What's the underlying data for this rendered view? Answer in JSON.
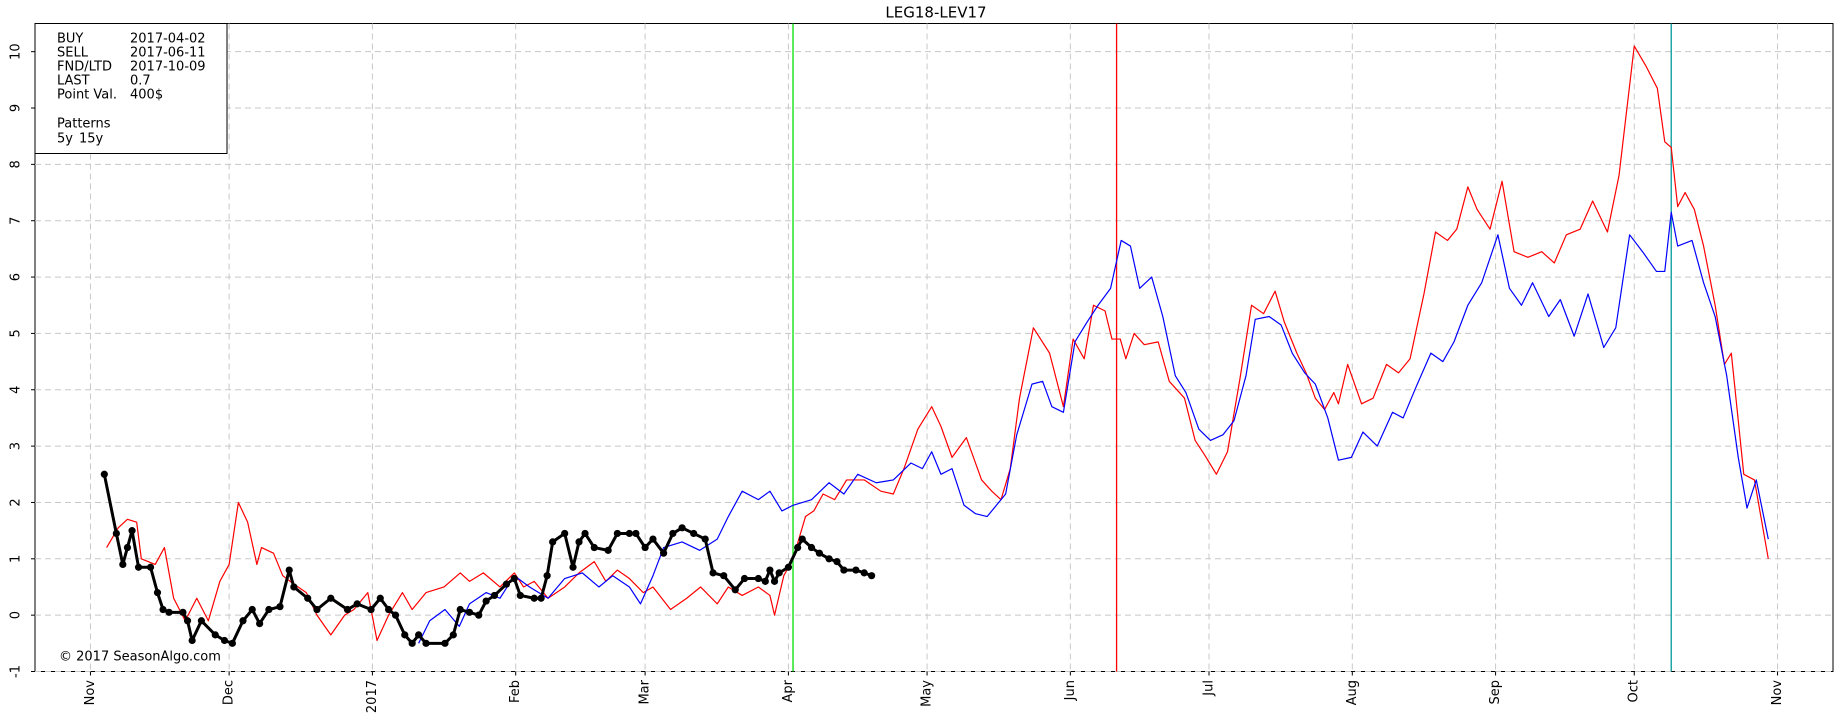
{
  "chart_data": {
    "type": "line",
    "title": "LEG18-LEV17",
    "xlim": [
      -12,
      377
    ],
    "ylim": [
      -1,
      10.5
    ],
    "grid": true,
    "xticks": [
      {
        "value": 0,
        "label": "Nov"
      },
      {
        "value": 30,
        "label": "Dec"
      },
      {
        "value": 61,
        "label": "2017"
      },
      {
        "value": 92,
        "label": "Feb"
      },
      {
        "value": 120,
        "label": "Mar"
      },
      {
        "value": 151,
        "label": "Apr"
      },
      {
        "value": 181,
        "label": "May"
      },
      {
        "value": 212,
        "label": "Jun"
      },
      {
        "value": 242,
        "label": "Jul"
      },
      {
        "value": 273,
        "label": "Aug"
      },
      {
        "value": 304,
        "label": "Sep"
      },
      {
        "value": 334,
        "label": "Oct"
      },
      {
        "value": 365,
        "label": "Nov"
      }
    ],
    "yticks": [
      -1,
      0,
      1,
      2,
      3,
      4,
      5,
      6,
      7,
      8,
      9,
      10
    ],
    "info": [
      {
        "label": "BUY",
        "value": "2017-04-02",
        "color": "#00e000",
        "x": 152
      },
      {
        "label": "SELL",
        "value": "2017-06-11",
        "color": "#ff0000",
        "x": 222
      },
      {
        "label": "FND/LTD",
        "value": "2017-10-09",
        "color": "#009999",
        "x": 342
      },
      {
        "label": "LAST",
        "value": "0.7",
        "color": "#000000"
      },
      {
        "label": "Point Val.",
        "value": "400$",
        "color": "#000000"
      }
    ],
    "legend_title": "Patterns",
    "footer": "© 2017 SeasonAlgo.com",
    "series": [
      {
        "name": "5y",
        "color": "#ff0000",
        "markers": false,
        "x": [
          3.5,
          6,
          8,
          10,
          11,
          14,
          16,
          18,
          20.5,
          23,
          25.5,
          28,
          30,
          32,
          34,
          36,
          37,
          39.6,
          41.6,
          44,
          46.7,
          49,
          52,
          55,
          57,
          60,
          62,
          64.5,
          67.5,
          69.6,
          72.6,
          76.5,
          80,
          82,
          85,
          88.6,
          91.7,
          93.7,
          96,
          99,
          102.6,
          105.7,
          109,
          111.5,
          114,
          116.6,
          119.6,
          121.7,
          125.5,
          129,
          132,
          135.6,
          138,
          141,
          144.5,
          147,
          148,
          150,
          152,
          154.7,
          156.5,
          158.5,
          161,
          163.6,
          167.4,
          171,
          173.7,
          176,
          179,
          182,
          184,
          186.4,
          189.5,
          192.8,
          195,
          197,
          199,
          201,
          204,
          207.5,
          210.5,
          212.6,
          215,
          217,
          219.5,
          221,
          222.8,
          224,
          225.8,
          228,
          231,
          233.4,
          236.7,
          239,
          241,
          243.6,
          246,
          248.7,
          251.2,
          253.8,
          256.3,
          258.3,
          261,
          263,
          265,
          267,
          269,
          270,
          272,
          275,
          277.5,
          280.4,
          283,
          285.5,
          288.5,
          291,
          293.6,
          295.6,
          298,
          300,
          302.8,
          305.4,
          308,
          311,
          314,
          316.7,
          319.3,
          322.3,
          325,
          328.2,
          330.7,
          334,
          336.5,
          339,
          340.6,
          342,
          343.4,
          345,
          347,
          349,
          351.5,
          353.5,
          355,
          357.7,
          360,
          363
        ],
        "values": [
          1.2,
          1.55,
          1.7,
          1.65,
          1.0,
          0.9,
          1.2,
          0.3,
          -0.1,
          0.3,
          -0.1,
          0.6,
          0.9,
          2.0,
          1.65,
          0.9,
          1.2,
          1.1,
          0.7,
          0.55,
          0.4,
          0,
          -0.35,
          0,
          0.1,
          0.4,
          -0.45,
          0,
          0.4,
          0.1,
          0.4,
          0.5,
          0.75,
          0.6,
          0.75,
          0.5,
          0.75,
          0.5,
          0.6,
          0.3,
          0.5,
          0.75,
          0.95,
          0.6,
          0.8,
          0.65,
          0.4,
          0.5,
          0.1,
          0.3,
          0.5,
          0.2,
          0.5,
          0.35,
          0.5,
          0.35,
          0.0,
          0.7,
          1.0,
          1.75,
          1.85,
          2.15,
          2.05,
          2.4,
          2.4,
          2.2,
          2.15,
          2.6,
          3.3,
          3.7,
          3.35,
          2.8,
          3.15,
          2.4,
          2.2,
          2.05,
          2.6,
          3.85,
          5.1,
          4.65,
          3.7,
          4.9,
          4.55,
          5.5,
          5.4,
          4.9,
          4.9,
          4.55,
          5.0,
          4.8,
          4.85,
          4.15,
          3.85,
          3.1,
          2.85,
          2.5,
          2.9,
          4.2,
          5.5,
          5.35,
          5.75,
          5.2,
          4.65,
          4.3,
          3.85,
          3.65,
          3.95,
          3.75,
          4.45,
          3.75,
          3.85,
          4.45,
          4.3,
          4.55,
          5.7,
          6.8,
          6.65,
          6.85,
          7.6,
          7.2,
          6.85,
          7.7,
          6.45,
          6.35,
          6.45,
          6.25,
          6.75,
          6.85,
          7.35,
          6.8,
          7.8,
          10.1,
          9.75,
          9.35,
          8.4,
          8.3,
          7.25,
          7.5,
          7.2,
          6.55,
          5.5,
          4.45,
          4.65,
          2.5,
          2.4,
          1.0
        ]
      },
      {
        "name": "15y",
        "color": "#0000ff",
        "markers": false,
        "x": [
          71,
          73.4,
          76.7,
          79.8,
          82,
          85.6,
          88.6,
          91.7,
          95,
          99,
          102.6,
          106.4,
          110,
          113,
          116.6,
          119,
          121.7,
          124,
          128,
          131.8,
          135.6,
          138,
          141,
          144.5,
          147,
          149.6,
          152,
          156,
          159.8,
          163,
          166,
          170,
          173.7,
          177.5,
          180,
          182,
          184,
          186.4,
          189,
          191.5,
          194,
          198,
          200.4,
          203.7,
          206,
          208,
          210.5,
          213,
          215.6,
          218,
          220.7,
          223,
          225,
          227,
          229.6,
          232,
          234.7,
          237,
          239.8,
          242.3,
          245,
          247.4,
          250,
          252,
          255,
          257.6,
          260,
          262.7,
          265,
          267.7,
          270,
          272.8,
          275.3,
          278.4,
          281.7,
          284,
          286.8,
          290,
          292.6,
          295,
          298,
          301,
          304.5,
          307,
          309.6,
          312,
          315.5,
          318,
          321,
          324,
          327.4,
          330,
          333,
          335.8,
          338.8,
          340.6,
          342,
          343.4,
          346.5,
          349,
          351.5,
          354,
          356.5,
          358.4,
          360.4,
          363
        ],
        "values": [
          -0.5,
          -0.1,
          0.1,
          -0.2,
          0.2,
          0.4,
          0.3,
          0.7,
          0.5,
          0.3,
          0.65,
          0.75,
          0.5,
          0.7,
          0.5,
          0.2,
          0.7,
          1.2,
          1.3,
          1.15,
          1.35,
          1.75,
          2.2,
          2.05,
          2.2,
          1.85,
          1.95,
          2.05,
          2.35,
          2.15,
          2.5,
          2.35,
          2.4,
          2.7,
          2.6,
          2.9,
          2.5,
          2.6,
          1.95,
          1.8,
          1.75,
          2.15,
          3.2,
          4.1,
          4.15,
          3.7,
          3.6,
          4.85,
          5.2,
          5.5,
          5.8,
          6.65,
          6.55,
          5.8,
          6.0,
          5.3,
          4.25,
          3.95,
          3.3,
          3.1,
          3.2,
          3.45,
          4.25,
          5.25,
          5.3,
          5.15,
          4.65,
          4.3,
          4.1,
          3.5,
          2.75,
          2.8,
          3.25,
          3.0,
          3.6,
          3.5,
          4.05,
          4.65,
          4.5,
          4.85,
          5.5,
          5.9,
          6.75,
          5.8,
          5.5,
          5.9,
          5.3,
          5.6,
          4.95,
          5.7,
          4.75,
          5.1,
          6.75,
          6.45,
          6.1,
          6.1,
          7.15,
          6.55,
          6.65,
          5.9,
          5.3,
          4.25,
          2.8,
          1.9,
          2.4,
          1.35
        ]
      },
      {
        "color": "#000000",
        "markers": true,
        "x": [
          3,
          5.6,
          7,
          8,
          9,
          10.4,
          13,
          14.5,
          15.7,
          17,
          20,
          21,
          22,
          24,
          27,
          29,
          30.7,
          33,
          35,
          36.6,
          38.6,
          41,
          43,
          44,
          47,
          49,
          52,
          55.6,
          57.7,
          60.7,
          62.7,
          64.5,
          66,
          68,
          69.6,
          71,
          72.6,
          76.7,
          78.5,
          80,
          82,
          84,
          85.6,
          87.4,
          90,
          91.7,
          93,
          96,
          97.5,
          98.8,
          100,
          102.6,
          104.4,
          105.7,
          107,
          109,
          112,
          114,
          116.6,
          118,
          120,
          121.7,
          124,
          126,
          128,
          130.5,
          133,
          134.7,
          137,
          139.5,
          141.5,
          144.5,
          146,
          147,
          148,
          149,
          151,
          153,
          154,
          156,
          157.7,
          159.8,
          161.5,
          163,
          165.6,
          167.4,
          169
        ],
        "values": [
          2.5,
          1.45,
          0.9,
          1.2,
          1.5,
          0.85,
          0.85,
          0.4,
          0.1,
          0.05,
          0.05,
          -0.1,
          -0.45,
          -0.1,
          -0.35,
          -0.45,
          -0.5,
          -0.1,
          0.1,
          -0.15,
          0.1,
          0.15,
          0.8,
          0.5,
          0.3,
          0.1,
          0.3,
          0.1,
          0.2,
          0.1,
          0.3,
          0.1,
          0.0,
          -0.35,
          -0.5,
          -0.35,
          -0.5,
          -0.5,
          -0.35,
          0.1,
          0.05,
          0.0,
          0.25,
          0.35,
          0.55,
          0.65,
          0.35,
          0.3,
          0.3,
          0.7,
          1.3,
          1.45,
          0.85,
          1.3,
          1.45,
          1.2,
          1.15,
          1.45,
          1.45,
          1.45,
          1.2,
          1.35,
          1.1,
          1.45,
          1.55,
          1.45,
          1.35,
          0.75,
          0.7,
          0.45,
          0.65,
          0.65,
          0.6,
          0.8,
          0.6,
          0.75,
          0.85,
          1.2,
          1.35,
          1.2,
          1.1,
          1.0,
          0.95,
          0.8,
          0.8,
          0.75,
          0.7
        ]
      }
    ]
  }
}
